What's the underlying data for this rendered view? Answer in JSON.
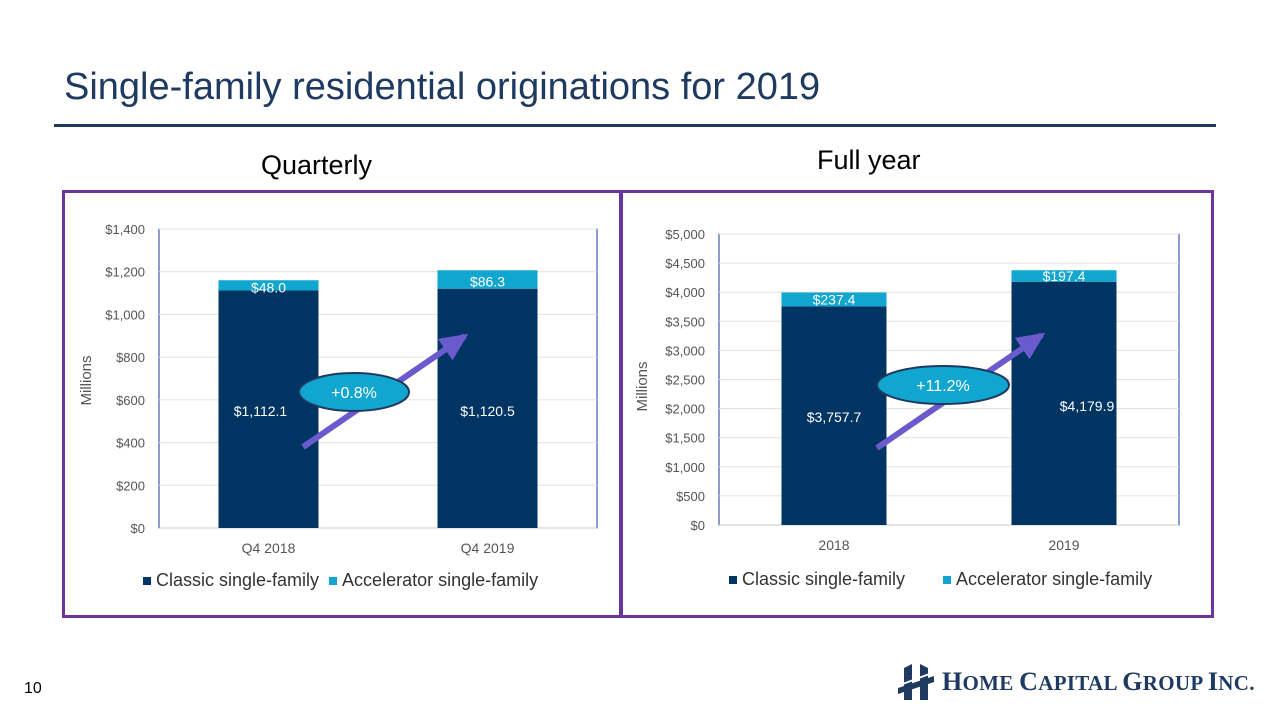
{
  "slide": {
    "title": "Single-family residential originations for 2019",
    "page_number": "10"
  },
  "logo": {
    "words": [
      {
        "first": "H",
        "rest": "OME"
      },
      {
        "first": "C",
        "rest": "APITAL"
      },
      {
        "first": "G",
        "rest": "ROUP"
      },
      {
        "first": "I",
        "rest": "NC."
      }
    ]
  },
  "colors": {
    "classic": "#003462",
    "accelerator": "#11a6cf",
    "panel_border": "#6a359c",
    "arrow": "#6a5acd",
    "bubble": "#11a6cf"
  },
  "chart_data": [
    {
      "section_title": "Quarterly",
      "type": "bar",
      "stacked": true,
      "categories": [
        "Q4 2018",
        "Q4 2019"
      ],
      "series": [
        {
          "name": "Classic single-family",
          "values": [
            1112.1,
            1120.5
          ],
          "labels": [
            "$1,112.1",
            "$1,120.5"
          ]
        },
        {
          "name": "Accelerator single-family",
          "values": [
            48.0,
            86.3
          ],
          "labels": [
            "$48.0",
            "$86.3"
          ]
        }
      ],
      "ylabel": "Millions",
      "ylim": [
        0,
        1400
      ],
      "yticks": [
        0,
        200,
        400,
        600,
        800,
        1000,
        1200,
        1400
      ],
      "ytick_labels": [
        "$0",
        "$200",
        "$400",
        "$600",
        "$800",
        "$1,000",
        "$1,200",
        "$1,400"
      ],
      "grid": true,
      "legend": "bottom",
      "annotation": "+0.8%"
    },
    {
      "section_title": "Full year",
      "type": "bar",
      "stacked": true,
      "categories": [
        "2018",
        "2019"
      ],
      "series": [
        {
          "name": "Classic single-family",
          "values": [
            3757.7,
            4179.9
          ],
          "labels": [
            "$3,757.7",
            "$4,179.9"
          ]
        },
        {
          "name": "Accelerator single-family",
          "values": [
            237.4,
            197.4
          ],
          "labels": [
            "$237.4",
            "$197.4"
          ]
        }
      ],
      "ylabel": "Millions",
      "ylim": [
        0,
        5000
      ],
      "yticks": [
        0,
        500,
        1000,
        1500,
        2000,
        2500,
        3000,
        3500,
        4000,
        4500,
        5000
      ],
      "ytick_labels": [
        "$0",
        "$500",
        "$1,000",
        "$1,500",
        "$2,000",
        "$2,500",
        "$3,000",
        "$3,500",
        "$4,000",
        "$4,500",
        "$5,000"
      ],
      "grid": true,
      "legend": "bottom",
      "annotation": "+11.2%"
    }
  ]
}
